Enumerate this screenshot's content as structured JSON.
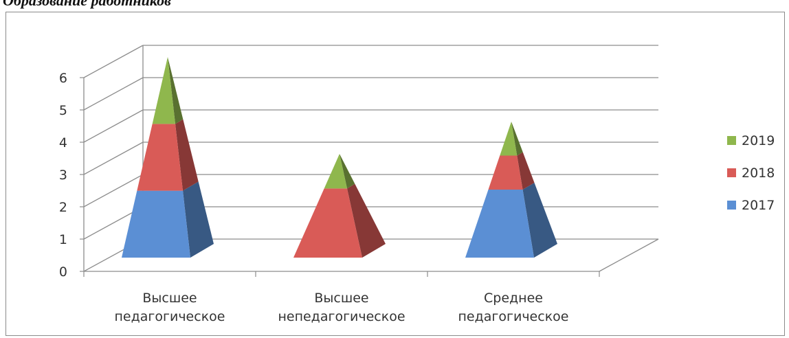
{
  "page": {
    "title": "Образование работников"
  },
  "chart_data": {
    "type": "bar",
    "shape": "stacked 3D pyramid",
    "categories": [
      [
        "Высшее",
        "педагогическое"
      ],
      [
        "Высшее",
        "непедагогическое"
      ],
      [
        "Среднее",
        "педагогическое"
      ]
    ],
    "series": [
      {
        "name": "2017",
        "values": [
          2,
          0,
          2
        ],
        "color": "#5b8fd4"
      },
      {
        "name": "2018",
        "values": [
          2,
          2,
          1
        ],
        "color": "#d95b57"
      },
      {
        "name": "2019",
        "values": [
          2,
          1,
          1
        ],
        "color": "#8fb74d"
      }
    ],
    "ylim": [
      0,
      6
    ],
    "yticks": [
      "0",
      "1",
      "2",
      "3",
      "4",
      "5",
      "6"
    ],
    "grid": true,
    "legend": "right"
  }
}
